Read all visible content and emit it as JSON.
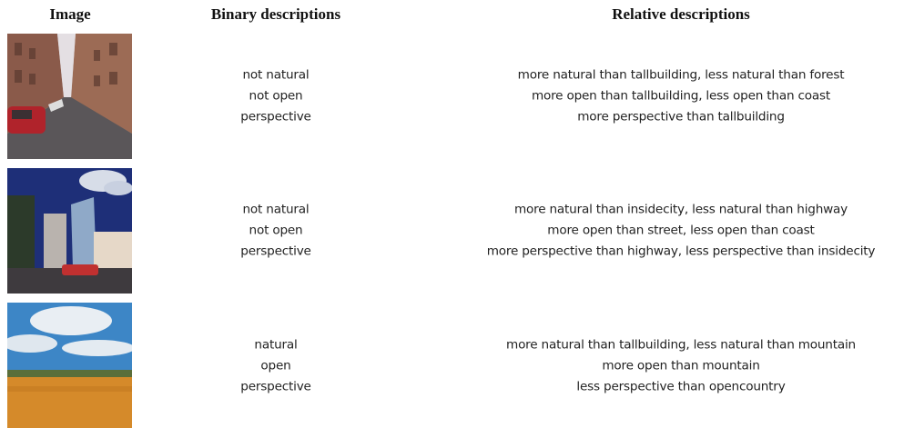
{
  "header": [
    "Image",
    "Binary descriptions",
    "Relative descriptions"
  ],
  "rows": [
    {
      "binary": [
        "not natural",
        "not open",
        "perspective"
      ],
      "relative": [
        "more natural than tallbuilding, less natural than forest",
        "more open than tallbuilding, less open than coast",
        "more perspective than tallbuilding"
      ]
    },
    {
      "binary": [
        "not natural",
        "not open",
        "perspective"
      ],
      "relative": [
        "more natural than insidecity, less natural than highway",
        "more open than street, less open than coast",
        "more perspective than highway, less perspective than insidecity"
      ]
    },
    {
      "binary": [
        "natural",
        "open",
        "perspective"
      ],
      "relative": [
        "more natural than tallbuilding, less natural than mountain",
        "more open than mountain",
        "less perspective than opencountry"
      ]
    }
  ]
}
